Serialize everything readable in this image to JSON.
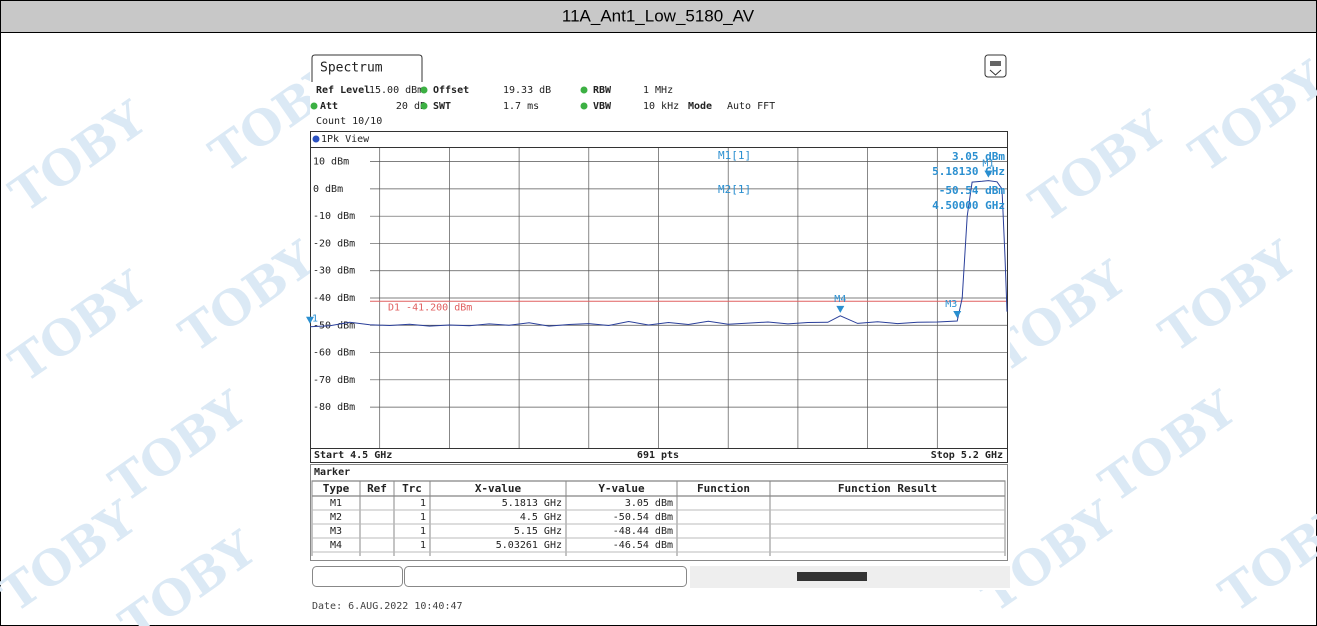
{
  "title": "11A_Ant1_Low_5180_AV",
  "watermark": "TOBY",
  "tab": "Spectrum",
  "settings": [
    [
      {
        "label": "Ref Level",
        "value": "15.00 dBm"
      },
      {
        "label": "Offset",
        "value": "19.33 dB"
      },
      {
        "label": "RBW",
        "value": "1 MHz"
      }
    ],
    [
      {
        "label": "Att",
        "value": "20 dB"
      },
      {
        "label": "SWT",
        "value": "1.7 ms"
      },
      {
        "label": "VBW",
        "value": "10 kHz"
      },
      {
        "label": "Mode",
        "value": "Auto FFT"
      }
    ]
  ],
  "count": "Count 10/10",
  "chart_data": {
    "type": "line",
    "view": "1Pk View",
    "xlim": [
      4.5,
      5.2
    ],
    "ylim": [
      -95,
      15
    ],
    "yticks": [
      {
        "value": 10,
        "label": "10 dBm"
      },
      {
        "value": 0,
        "label": "0 dBm"
      },
      {
        "value": -10,
        "label": "-10 dBm"
      },
      {
        "value": -20,
        "label": "-20 dBm"
      },
      {
        "value": -30,
        "label": "-30 dBm"
      },
      {
        "value": -40,
        "label": "-40 dBm"
      },
      {
        "value": -50,
        "label": "-50 dBm"
      },
      {
        "value": -60,
        "label": "-60 dBm"
      },
      {
        "value": -70,
        "label": "-70 dBm"
      },
      {
        "value": -80,
        "label": "-80 dBm"
      }
    ],
    "start_label": "Start 4.5 GHz",
    "points_label": "691 pts",
    "stop_label": "Stop 5.2 GHz",
    "grid": true,
    "display_line": {
      "label": "D1 -41.200 dBm",
      "value": -41.2,
      "color": "#e06060"
    },
    "series": [
      {
        "name": "1",
        "color": "#2a3f9a",
        "x": [
          4.5,
          4.52,
          4.54,
          4.56,
          4.58,
          4.6,
          4.62,
          4.64,
          4.66,
          4.68,
          4.7,
          4.72,
          4.74,
          4.76,
          4.78,
          4.8,
          4.82,
          4.84,
          4.86,
          4.88,
          4.9,
          4.92,
          4.94,
          4.96,
          4.98,
          5.0,
          5.02,
          5.03261,
          5.05,
          5.07,
          5.09,
          5.11,
          5.13,
          5.14,
          5.15,
          5.155,
          5.16,
          5.165,
          5.175,
          5.1813,
          5.19,
          5.195,
          5.198,
          5.2
        ],
        "values": [
          -50.54,
          -50.2,
          -48.9,
          -49.8,
          -50.1,
          -49.6,
          -50.3,
          -49.9,
          -50.2,
          -49.5,
          -50.0,
          -49.1,
          -50.3,
          -49.7,
          -49.4,
          -50.1,
          -48.6,
          -49.9,
          -49.0,
          -49.7,
          -48.5,
          -49.6,
          -49.2,
          -48.8,
          -49.5,
          -49.0,
          -48.9,
          -46.54,
          -49.3,
          -48.7,
          -49.4,
          -48.9,
          -48.8,
          -48.6,
          -48.44,
          -40,
          -10,
          2.5,
          2.8,
          3.05,
          2.6,
          0,
          -25,
          -45
        ]
      }
    ],
    "marker_color": "#2a8fd0",
    "markers": [
      {
        "name": "M1",
        "trc": "1",
        "x": 5.1813,
        "y": 3.05,
        "x_label": "5.1813 GHz",
        "y_label": "3.05 dBm"
      },
      {
        "name": "M2",
        "trc": "1",
        "x": 4.5,
        "y": -50.54,
        "x_label": "4.5 GHz",
        "y_label": "-50.54 dBm"
      },
      {
        "name": "M3",
        "trc": "1",
        "x": 5.15,
        "y": -48.44,
        "x_label": "5.15 GHz",
        "y_label": "-48.44 dBm"
      },
      {
        "name": "M4",
        "trc": "1",
        "x": 5.03261,
        "y": -46.54,
        "x_label": "5.03261 GHz",
        "y_label": "-46.54 dBm"
      }
    ],
    "readouts": [
      {
        "label": "M1[1]",
        "y": "3.05 dBm",
        "x": "5.18130 GHz"
      },
      {
        "label": "M2[1]",
        "y": "-50.54 dBm",
        "x": "4.50000 GHz"
      }
    ]
  },
  "marker_table": {
    "title": "Marker",
    "columns": [
      "Type",
      "Ref",
      "Trc",
      "X-value",
      "Y-value",
      "Function",
      "Function Result"
    ]
  },
  "date": "Date: 6.AUG.2022  10:40:47"
}
